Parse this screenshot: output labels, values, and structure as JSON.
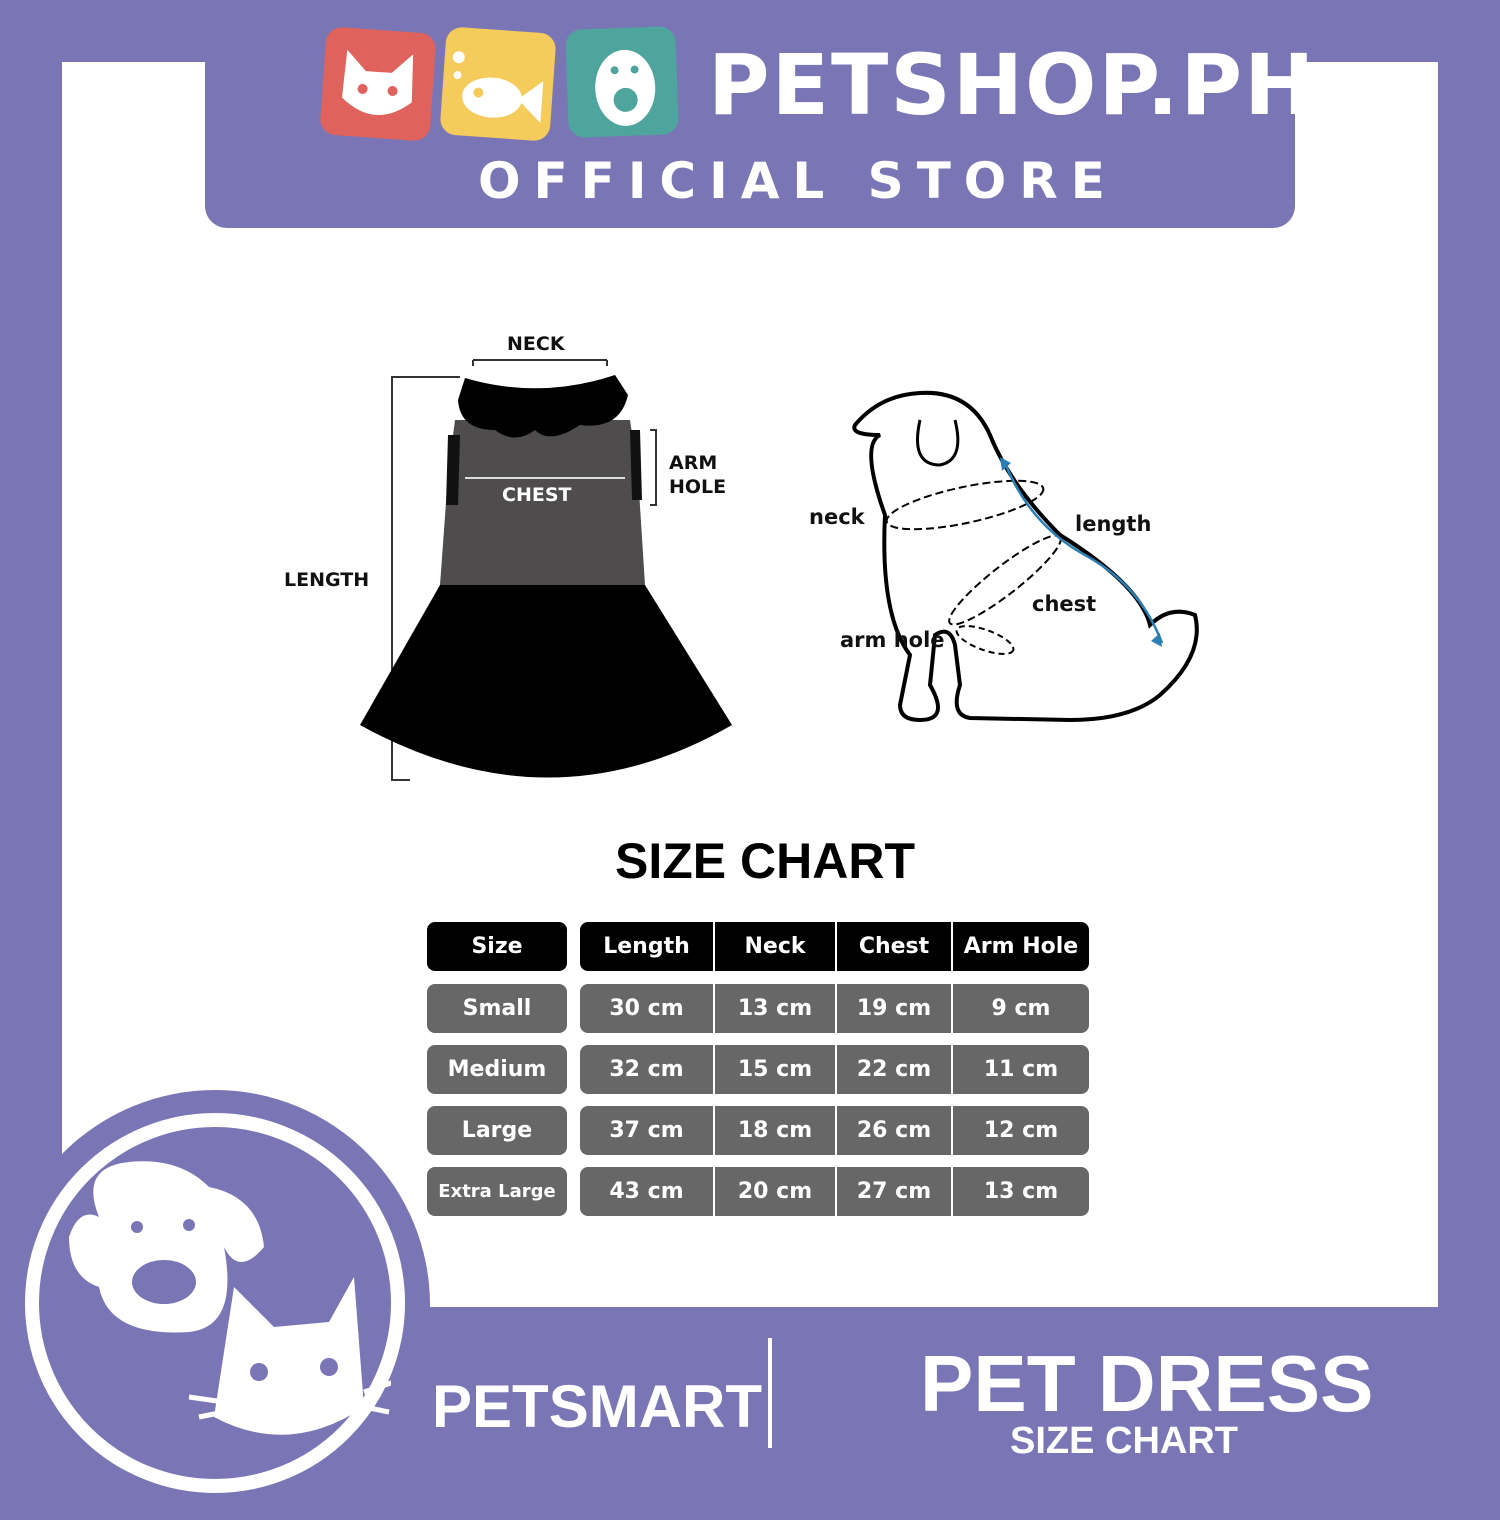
{
  "brand": {
    "name": "PETSHOP.PH",
    "tagline": "OFFICIAL STORE",
    "tile_colors": [
      "#e0625c",
      "#f5cb5c",
      "#4ea59e"
    ],
    "accent": "#7a76b6"
  },
  "diagram": {
    "dress_labels": {
      "neck": "NECK",
      "chest": "CHEST",
      "arm_hole_1": "ARM",
      "arm_hole_2": "HOLE",
      "length": "LENGTH"
    },
    "dog_labels": {
      "neck": "neck",
      "length": "length",
      "chest": "chest",
      "arm_hole": "arm hole"
    }
  },
  "size_chart": {
    "title": "SIZE CHART",
    "headers": [
      "Size",
      "Length",
      "Neck",
      "Chest",
      "Arm Hole"
    ],
    "rows": [
      [
        "Small",
        "30 cm",
        "13 cm",
        "19 cm",
        "9 cm"
      ],
      [
        "Medium",
        "32 cm",
        "15 cm",
        "22 cm",
        "11 cm"
      ],
      [
        "Large",
        "37 cm",
        "18 cm",
        "26 cm",
        "12 cm"
      ],
      [
        "Extra Large",
        "43 cm",
        "20 cm",
        "27 cm",
        "13 cm"
      ]
    ]
  },
  "footer": {
    "brand": "PETSMART",
    "product": "PET DRESS",
    "subtitle": "SIZE CHART"
  }
}
